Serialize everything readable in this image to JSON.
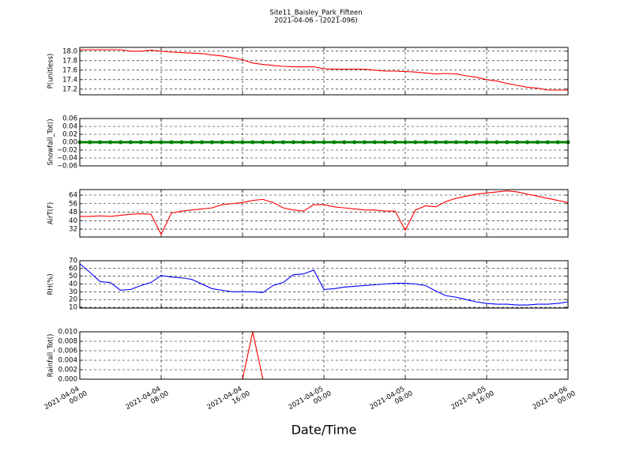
{
  "title": "Site11_Baisley_Park_Fifteen",
  "subtitle": "2021-04-06 - (2021-096)",
  "chart_data": [
    {
      "type": "line",
      "ylabel": "P(unitless)",
      "color": "#ff0000",
      "ylim": [
        17.08,
        18.08
      ],
      "yticks": [
        {
          "value": 17.2,
          "label": "17.2"
        },
        {
          "value": 17.4,
          "label": "17.4"
        },
        {
          "value": 17.6,
          "label": "17.6"
        },
        {
          "value": 17.8,
          "label": "17.8"
        },
        {
          "value": 18.0,
          "label": "18.0"
        }
      ],
      "x": [
        "2021-04-04 00:00",
        "2021-04-04 01:00",
        "2021-04-04 02:00",
        "2021-04-04 03:00",
        "2021-04-04 04:00",
        "2021-04-04 05:00",
        "2021-04-04 06:00",
        "2021-04-04 07:00",
        "2021-04-04 08:00",
        "2021-04-04 09:00",
        "2021-04-04 10:00",
        "2021-04-04 11:00",
        "2021-04-04 12:00",
        "2021-04-04 13:00",
        "2021-04-04 14:00",
        "2021-04-04 15:00",
        "2021-04-04 16:00",
        "2021-04-04 17:00",
        "2021-04-04 18:00",
        "2021-04-04 19:00",
        "2021-04-04 20:00",
        "2021-04-04 21:00",
        "2021-04-04 22:00",
        "2021-04-04 23:00",
        "2021-04-05 00:00",
        "2021-04-05 01:00",
        "2021-04-05 02:00",
        "2021-04-05 03:00",
        "2021-04-05 04:00",
        "2021-04-05 05:00",
        "2021-04-05 06:00",
        "2021-04-05 07:00",
        "2021-04-05 08:00",
        "2021-04-05 09:00",
        "2021-04-05 10:00",
        "2021-04-05 11:00",
        "2021-04-05 12:00",
        "2021-04-05 13:00",
        "2021-04-05 14:00",
        "2021-04-05 15:00",
        "2021-04-05 16:00",
        "2021-04-05 17:00",
        "2021-04-05 18:00",
        "2021-04-05 19:00",
        "2021-04-05 20:00",
        "2021-04-05 21:00",
        "2021-04-05 22:00",
        "2021-04-05 23:00",
        "2021-04-06 00:00"
      ],
      "values": [
        18.03,
        18.03,
        18.03,
        18.03,
        18.03,
        18.0,
        18.0,
        18.02,
        18.0,
        17.98,
        17.97,
        17.96,
        17.95,
        17.92,
        17.9,
        17.86,
        17.82,
        17.75,
        17.72,
        17.7,
        17.68,
        17.67,
        17.67,
        17.67,
        17.63,
        17.62,
        17.62,
        17.62,
        17.62,
        17.6,
        17.58,
        17.58,
        17.57,
        17.56,
        17.54,
        17.52,
        17.53,
        17.52,
        17.48,
        17.45,
        17.4,
        17.37,
        17.32,
        17.28,
        17.24,
        17.22,
        17.18,
        17.18,
        17.18
      ]
    },
    {
      "type": "line",
      "ylabel": "Snowfall_Tot()",
      "color": "#008000",
      "markers": true,
      "ylim": [
        -0.06,
        0.06
      ],
      "yticks": [
        {
          "value": -0.06,
          "label": "−0.06"
        },
        {
          "value": -0.04,
          "label": "−0.04"
        },
        {
          "value": -0.02,
          "label": "−0.02"
        },
        {
          "value": 0,
          "label": "0.00"
        },
        {
          "value": 0.02,
          "label": "0.02"
        },
        {
          "value": 0.04,
          "label": "0.04"
        },
        {
          "value": 0.06,
          "label": "0.06"
        }
      ],
      "x": [
        "2021-04-04 00:00",
        "2021-04-04 01:00",
        "2021-04-04 02:00",
        "2021-04-04 03:00",
        "2021-04-04 04:00",
        "2021-04-04 05:00",
        "2021-04-04 06:00",
        "2021-04-04 07:00",
        "2021-04-04 08:00",
        "2021-04-04 09:00",
        "2021-04-04 10:00",
        "2021-04-04 11:00",
        "2021-04-04 12:00",
        "2021-04-04 13:00",
        "2021-04-04 14:00",
        "2021-04-04 15:00",
        "2021-04-04 16:00",
        "2021-04-04 17:00",
        "2021-04-04 18:00",
        "2021-04-04 19:00",
        "2021-04-04 20:00",
        "2021-04-04 21:00",
        "2021-04-04 22:00",
        "2021-04-04 23:00",
        "2021-04-05 00:00",
        "2021-04-05 01:00",
        "2021-04-05 02:00",
        "2021-04-05 03:00",
        "2021-04-05 04:00",
        "2021-04-05 05:00",
        "2021-04-05 06:00",
        "2021-04-05 07:00",
        "2021-04-05 08:00",
        "2021-04-05 09:00",
        "2021-04-05 10:00",
        "2021-04-05 11:00",
        "2021-04-05 12:00",
        "2021-04-05 13:00",
        "2021-04-05 14:00",
        "2021-04-05 15:00",
        "2021-04-05 16:00",
        "2021-04-05 17:00",
        "2021-04-05 18:00",
        "2021-04-05 19:00",
        "2021-04-05 20:00",
        "2021-04-05 21:00",
        "2021-04-05 22:00",
        "2021-04-05 23:00",
        "2021-04-06 00:00"
      ],
      "values": [
        0,
        0,
        0,
        0,
        0,
        0,
        0,
        0,
        0,
        0,
        0,
        0,
        0,
        0,
        0,
        0,
        0,
        0,
        0,
        0,
        0,
        0,
        0,
        0,
        0,
        0,
        0,
        0,
        0,
        0,
        0,
        0,
        0,
        0,
        0,
        0,
        0,
        0,
        0,
        0,
        0,
        0,
        0,
        0,
        0,
        0,
        0,
        0,
        0
      ]
    },
    {
      "type": "line",
      "ylabel": "AirT(F)",
      "color": "#ff0000",
      "ylim": [
        24.6,
        69.2
      ],
      "yticks": [
        32,
        40,
        48,
        56,
        64
      ],
      "x": [
        "2021-04-04 00:00",
        "2021-04-04 01:00",
        "2021-04-04 02:00",
        "2021-04-04 03:00",
        "2021-04-04 04:00",
        "2021-04-04 05:00",
        "2021-04-04 06:00",
        "2021-04-04 07:00",
        "2021-04-04 08:00",
        "2021-04-04 09:00",
        "2021-04-04 10:00",
        "2021-04-04 11:00",
        "2021-04-04 12:00",
        "2021-04-04 13:00",
        "2021-04-04 14:00",
        "2021-04-04 15:00",
        "2021-04-04 16:00",
        "2021-04-04 17:00",
        "2021-04-04 18:00",
        "2021-04-04 19:00",
        "2021-04-04 20:00",
        "2021-04-04 21:00",
        "2021-04-04 22:00",
        "2021-04-04 23:00",
        "2021-04-05 00:00",
        "2021-04-05 01:00",
        "2021-04-05 02:00",
        "2021-04-05 03:00",
        "2021-04-05 04:00",
        "2021-04-05 05:00",
        "2021-04-05 06:00",
        "2021-04-05 07:00",
        "2021-04-05 08:00",
        "2021-04-05 09:00",
        "2021-04-05 10:00",
        "2021-04-05 11:00",
        "2021-04-05 12:00",
        "2021-04-05 13:00",
        "2021-04-05 14:00",
        "2021-04-05 15:00",
        "2021-04-05 16:00",
        "2021-04-05 17:00",
        "2021-04-05 18:00",
        "2021-04-05 19:00",
        "2021-04-05 20:00",
        "2021-04-05 21:00",
        "2021-04-05 22:00",
        "2021-04-05 23:00",
        "2021-04-06 00:00"
      ],
      "values": [
        44,
        44,
        44.5,
        44,
        45,
        46,
        46.5,
        46,
        27,
        47,
        49,
        50,
        51,
        52,
        55,
        56,
        57,
        59,
        60,
        57,
        52,
        50,
        49,
        55,
        55,
        53,
        52,
        51,
        50,
        50,
        49,
        49,
        31,
        50,
        54,
        53,
        58,
        61,
        63,
        65,
        66,
        67,
        68,
        67,
        65,
        63,
        61,
        59,
        57
      ]
    },
    {
      "type": "line",
      "ylabel": "RH(%)",
      "color": "#0000ff",
      "ylim": [
        9,
        70
      ],
      "yticks": [
        10,
        20,
        30,
        40,
        50,
        60,
        70
      ],
      "x": [
        "2021-04-04 00:00",
        "2021-04-04 01:00",
        "2021-04-04 02:00",
        "2021-04-04 03:00",
        "2021-04-04 04:00",
        "2021-04-04 05:00",
        "2021-04-04 06:00",
        "2021-04-04 07:00",
        "2021-04-04 08:00",
        "2021-04-04 09:00",
        "2021-04-04 10:00",
        "2021-04-04 11:00",
        "2021-04-04 12:00",
        "2021-04-04 13:00",
        "2021-04-04 14:00",
        "2021-04-04 15:00",
        "2021-04-04 16:00",
        "2021-04-04 17:00",
        "2021-04-04 18:00",
        "2021-04-04 19:00",
        "2021-04-04 20:00",
        "2021-04-04 21:00",
        "2021-04-04 22:00",
        "2021-04-04 23:00",
        "2021-04-05 00:00",
        "2021-04-05 01:00",
        "2021-04-05 02:00",
        "2021-04-05 03:00",
        "2021-04-05 04:00",
        "2021-04-05 05:00",
        "2021-04-05 06:00",
        "2021-04-05 07:00",
        "2021-04-05 08:00",
        "2021-04-05 09:00",
        "2021-04-05 10:00",
        "2021-04-05 11:00",
        "2021-04-05 12:00",
        "2021-04-05 13:00",
        "2021-04-05 14:00",
        "2021-04-05 15:00",
        "2021-04-05 16:00",
        "2021-04-05 17:00",
        "2021-04-05 18:00",
        "2021-04-05 19:00",
        "2021-04-05 20:00",
        "2021-04-05 21:00",
        "2021-04-05 22:00",
        "2021-04-05 23:00",
        "2021-04-06 00:00"
      ],
      "values": [
        66,
        55,
        43,
        42,
        32,
        33,
        38,
        42,
        51,
        49,
        48,
        46,
        40,
        34,
        32,
        30,
        30,
        30,
        29,
        38,
        42,
        52,
        53,
        58,
        33,
        34,
        36,
        37,
        38,
        39,
        40,
        41,
        41,
        40,
        38,
        31,
        25,
        23,
        20,
        17,
        15,
        14,
        14,
        13,
        13,
        14,
        14,
        15,
        17
      ]
    },
    {
      "type": "line",
      "ylabel": "Rainfall_Tot()",
      "color": "#ff0000",
      "ylim": [
        0,
        0.01
      ],
      "yticks": [
        {
          "value": 0,
          "label": "0.000"
        },
        {
          "value": 0.002,
          "label": "0.002"
        },
        {
          "value": 0.004,
          "label": "0.004"
        },
        {
          "value": 0.006,
          "label": "0.006"
        },
        {
          "value": 0.008,
          "label": "0.008"
        },
        {
          "value": 0.01,
          "label": "0.010"
        }
      ],
      "x": [
        "2021-04-04 00:00",
        "2021-04-04 01:00",
        "2021-04-04 02:00",
        "2021-04-04 03:00",
        "2021-04-04 04:00",
        "2021-04-04 05:00",
        "2021-04-04 06:00",
        "2021-04-04 07:00",
        "2021-04-04 08:00",
        "2021-04-04 09:00",
        "2021-04-04 10:00",
        "2021-04-04 11:00",
        "2021-04-04 12:00",
        "2021-04-04 13:00",
        "2021-04-04 14:00",
        "2021-04-04 15:00",
        "2021-04-04 16:00",
        "2021-04-04 17:00",
        "2021-04-04 18:00",
        "2021-04-04 19:00",
        "2021-04-04 20:00",
        "2021-04-04 21:00",
        "2021-04-04 22:00",
        "2021-04-04 23:00",
        "2021-04-05 00:00",
        "2021-04-05 01:00",
        "2021-04-05 02:00",
        "2021-04-05 03:00",
        "2021-04-05 04:00",
        "2021-04-05 05:00",
        "2021-04-05 06:00",
        "2021-04-05 07:00",
        "2021-04-05 08:00",
        "2021-04-05 09:00",
        "2021-04-05 10:00",
        "2021-04-05 11:00",
        "2021-04-05 12:00",
        "2021-04-05 13:00",
        "2021-04-05 14:00",
        "2021-04-05 15:00",
        "2021-04-05 16:00",
        "2021-04-05 17:00",
        "2021-04-05 18:00",
        "2021-04-05 19:00",
        "2021-04-05 20:00",
        "2021-04-05 21:00",
        "2021-04-05 22:00",
        "2021-04-05 23:00",
        "2021-04-06 00:00"
      ],
      "values": [
        0,
        0,
        0,
        0,
        0,
        0,
        0,
        0,
        0,
        0,
        0,
        0,
        0,
        0,
        0,
        0,
        0,
        0.01,
        0,
        0,
        0,
        0,
        0,
        0,
        0,
        0,
        0,
        0,
        0,
        0,
        0,
        0,
        0,
        0,
        0,
        0,
        0,
        0,
        0,
        0,
        0,
        0,
        0,
        0,
        0,
        0,
        0,
        0,
        0
      ],
      "xlabel": "Date/Time",
      "xlim": [
        "2021-04-04 00:00",
        "2021-04-06 00:00"
      ],
      "xticks": [
        {
          "value": "2021-04-04 00:00",
          "label": [
            "2021-04-04",
            "00:00"
          ]
        },
        {
          "value": "2021-04-04 08:00",
          "label": [
            "2021-04-04",
            "08:00"
          ]
        },
        {
          "value": "2021-04-04 16:00",
          "label": [
            "2021-04-04",
            "16:00"
          ]
        },
        {
          "value": "2021-04-05 00:00",
          "label": [
            "2021-04-05",
            "00:00"
          ]
        },
        {
          "value": "2021-04-05 08:00",
          "label": [
            "2021-04-05",
            "08:00"
          ]
        },
        {
          "value": "2021-04-05 16:00",
          "label": [
            "2021-04-05",
            "16:00"
          ]
        },
        {
          "value": "2021-04-06 00:00",
          "label": [
            "2021-04-06",
            "00:00"
          ]
        }
      ]
    }
  ]
}
